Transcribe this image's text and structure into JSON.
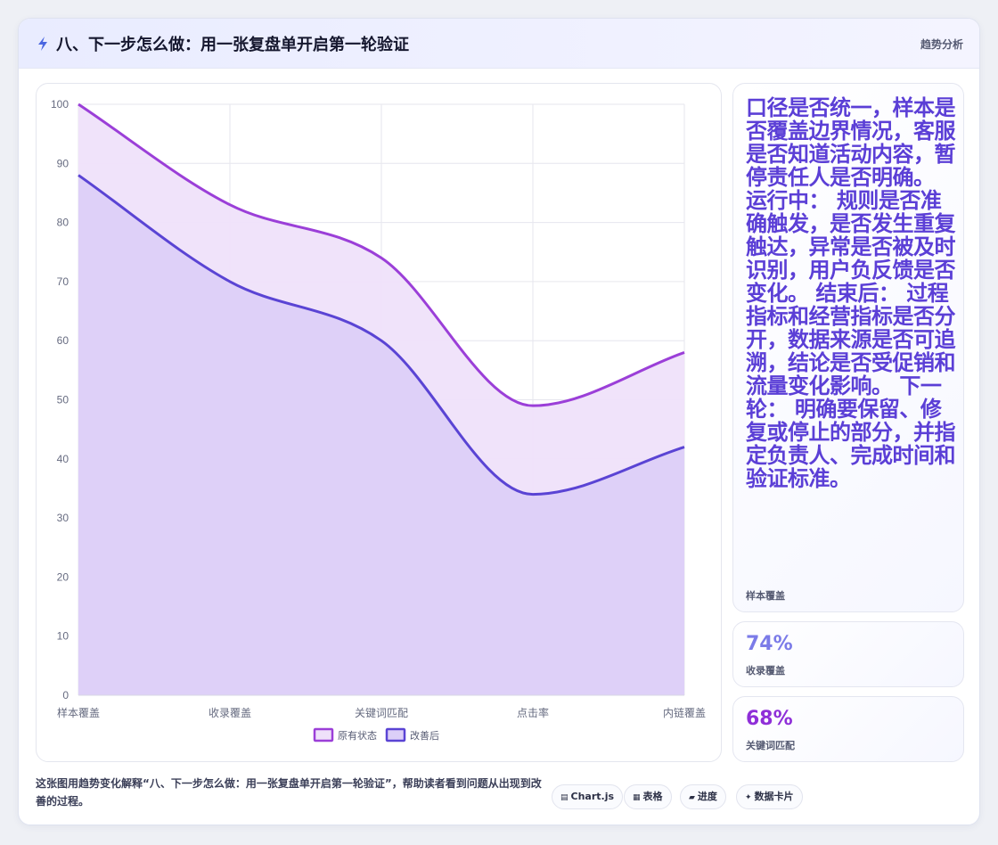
{
  "header": {
    "title": "八、下一步怎么做：用一张复盘单开启第一轮验证",
    "tag": "趋势分析"
  },
  "chart_data": {
    "type": "area",
    "categories": [
      "样本覆盖",
      "收录覆盖",
      "关键词匹配",
      "点击率",
      "内链覆盖"
    ],
    "series": [
      {
        "name": "原有状态",
        "values": [
          100,
          83,
          74,
          49,
          58
        ],
        "color": "#9b3fd8",
        "fill": "#efe1fa"
      },
      {
        "name": "改善后",
        "values": [
          88,
          70,
          60,
          34,
          42
        ],
        "color": "#5a44d4",
        "fill": "#dccff8"
      }
    ],
    "ylim": [
      0,
      100
    ],
    "yticks": [
      "100",
      "90",
      "80",
      "70",
      "60",
      "50",
      "40",
      "30",
      "20",
      "10",
      "0"
    ],
    "grid": true,
    "legend": "bottom"
  },
  "side": {
    "big_text": "口径是否统一，样本是否覆盖边界情况，客服是否知道活动内容，暂停责任人是否明确。 运行中： 规则是否准确触发，是否发生重复触达，异常是否被及时识别，用户负反馈是否变化。 结束后： 过程指标和经营指标是否分开，数据来源是否可追溯，结论是否受促销和流量变化影响。 下一轮： 明确要保留、修复或停止的部分，并指定负责人、完成时间和验证标准。",
    "big_label": "样本覆盖",
    "stat1_value": "74%",
    "stat1_label": "收录覆盖",
    "stat2_value": "68%",
    "stat2_label": "关键词匹配"
  },
  "footer": {
    "caption": "这张图用趋势变化解释“八、下一步怎么做：用一张复盘单开启第一轮验证”，帮助读者看到问题从出现到改善的过程。",
    "pills": [
      "Chart.js",
      "表格",
      "进度",
      "数据卡片"
    ]
  }
}
